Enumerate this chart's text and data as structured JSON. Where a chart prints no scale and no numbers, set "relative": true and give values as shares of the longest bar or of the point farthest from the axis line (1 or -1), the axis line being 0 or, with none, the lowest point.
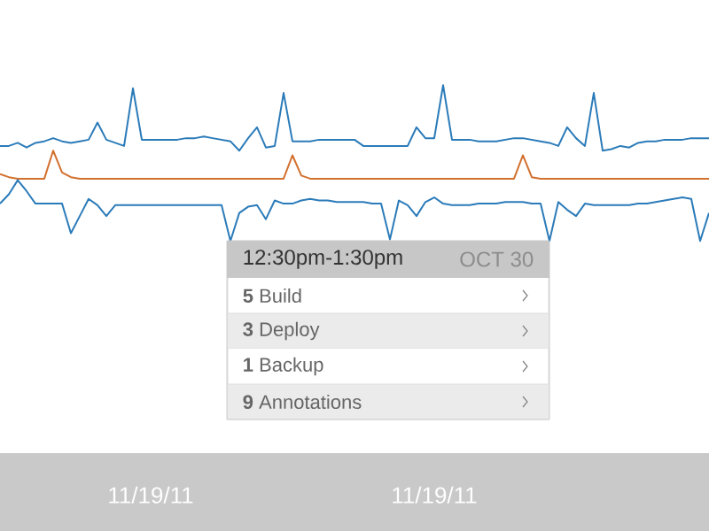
{
  "chart_data": {
    "type": "line",
    "relative": true,
    "categories": [
      null,
      null,
      null,
      null,
      null,
      null,
      null,
      null,
      null,
      null,
      null,
      null,
      null,
      null,
      null,
      null,
      null,
      "11/19/11",
      null,
      null,
      null,
      null,
      null,
      null,
      null,
      null,
      null,
      null,
      null,
      null,
      null,
      null,
      null,
      null,
      null,
      null,
      null,
      null,
      null,
      null,
      null,
      null,
      null,
      null,
      null,
      null,
      null,
      null,
      null,
      "11/19/11",
      null,
      null,
      null,
      null,
      null,
      null,
      null,
      null,
      null,
      null,
      null,
      null,
      null,
      null,
      null,
      null,
      null,
      null,
      null,
      null,
      null,
      null,
      null,
      null,
      null,
      null,
      null,
      null,
      null,
      null,
      null
    ],
    "series": [
      {
        "color": "#2b7bb9",
        "values": [
          0.61,
          0.61,
          0.63,
          0.6,
          0.63,
          0.64,
          0.66,
          0.64,
          0.63,
          0.64,
          0.65,
          0.76,
          0.65,
          0.63,
          0.61,
          0.98,
          0.65,
          0.65,
          0.65,
          0.65,
          0.65,
          0.66,
          0.66,
          0.67,
          0.66,
          0.65,
          0.64,
          0.58,
          0.66,
          0.73,
          0.6,
          0.61,
          0.95,
          0.64,
          0.64,
          0.64,
          0.65,
          0.65,
          0.65,
          0.65,
          0.65,
          0.61,
          0.61,
          0.61,
          0.61,
          0.61,
          0.61,
          0.73,
          0.66,
          0.66,
          1.0,
          0.65,
          0.65,
          0.65,
          0.64,
          0.64,
          0.64,
          0.65,
          0.66,
          0.66,
          0.65,
          0.64,
          0.63,
          0.61,
          0.73,
          0.66,
          0.61,
          0.95,
          0.58,
          0.59,
          0.61,
          0.6,
          0.63,
          0.64,
          0.64,
          0.65,
          0.65,
          0.65,
          0.66,
          0.66,
          0.66
        ]
      },
      {
        "color": "#d2702e",
        "values": [
          0.43,
          0.41,
          0.4,
          0.4,
          0.4,
          0.4,
          0.58,
          0.44,
          0.41,
          0.4,
          0.4,
          0.4,
          0.4,
          0.4,
          0.4,
          0.4,
          0.4,
          0.4,
          0.4,
          0.4,
          0.4,
          0.4,
          0.4,
          0.4,
          0.4,
          0.4,
          0.4,
          0.4,
          0.4,
          0.4,
          0.4,
          0.4,
          0.4,
          0.55,
          0.42,
          0.4,
          0.4,
          0.4,
          0.4,
          0.4,
          0.4,
          0.4,
          0.4,
          0.4,
          0.4,
          0.4,
          0.4,
          0.4,
          0.4,
          0.4,
          0.4,
          0.4,
          0.4,
          0.4,
          0.4,
          0.4,
          0.4,
          0.4,
          0.4,
          0.55,
          0.41,
          0.4,
          0.4,
          0.4,
          0.4,
          0.4,
          0.4,
          0.4,
          0.4,
          0.4,
          0.4,
          0.4,
          0.4,
          0.4,
          0.4,
          0.4,
          0.4,
          0.4,
          0.4,
          0.4,
          0.4
        ]
      },
      {
        "color": "#2b7bb9",
        "values": [
          0.24,
          0.3,
          0.39,
          0.32,
          0.24,
          0.24,
          0.24,
          0.24,
          0.05,
          0.16,
          0.27,
          0.23,
          0.16,
          0.23,
          0.23,
          0.23,
          0.23,
          0.23,
          0.23,
          0.23,
          0.23,
          0.23,
          0.23,
          0.23,
          0.23,
          0.23,
          0.0,
          0.18,
          0.22,
          0.23,
          0.14,
          0.26,
          0.24,
          0.24,
          0.26,
          0.27,
          0.26,
          0.26,
          0.25,
          0.25,
          0.25,
          0.25,
          0.24,
          0.24,
          0.01,
          0.26,
          0.23,
          0.16,
          0.25,
          0.28,
          0.24,
          0.23,
          0.23,
          0.23,
          0.24,
          0.24,
          0.24,
          0.25,
          0.25,
          0.25,
          0.24,
          0.24,
          0.0,
          0.25,
          0.2,
          0.16,
          0.24,
          0.23,
          0.23,
          0.23,
          0.23,
          0.23,
          0.24,
          0.24,
          0.25,
          0.26,
          0.27,
          0.28,
          0.27,
          0.0,
          0.18
        ]
      }
    ],
    "annotations": [
      "12:30pm-1:30pm",
      "OCT 30",
      "**5** Build",
      "**3** Deploy",
      "**1** Backup",
      "**9** Annotations"
    ]
  }
}
